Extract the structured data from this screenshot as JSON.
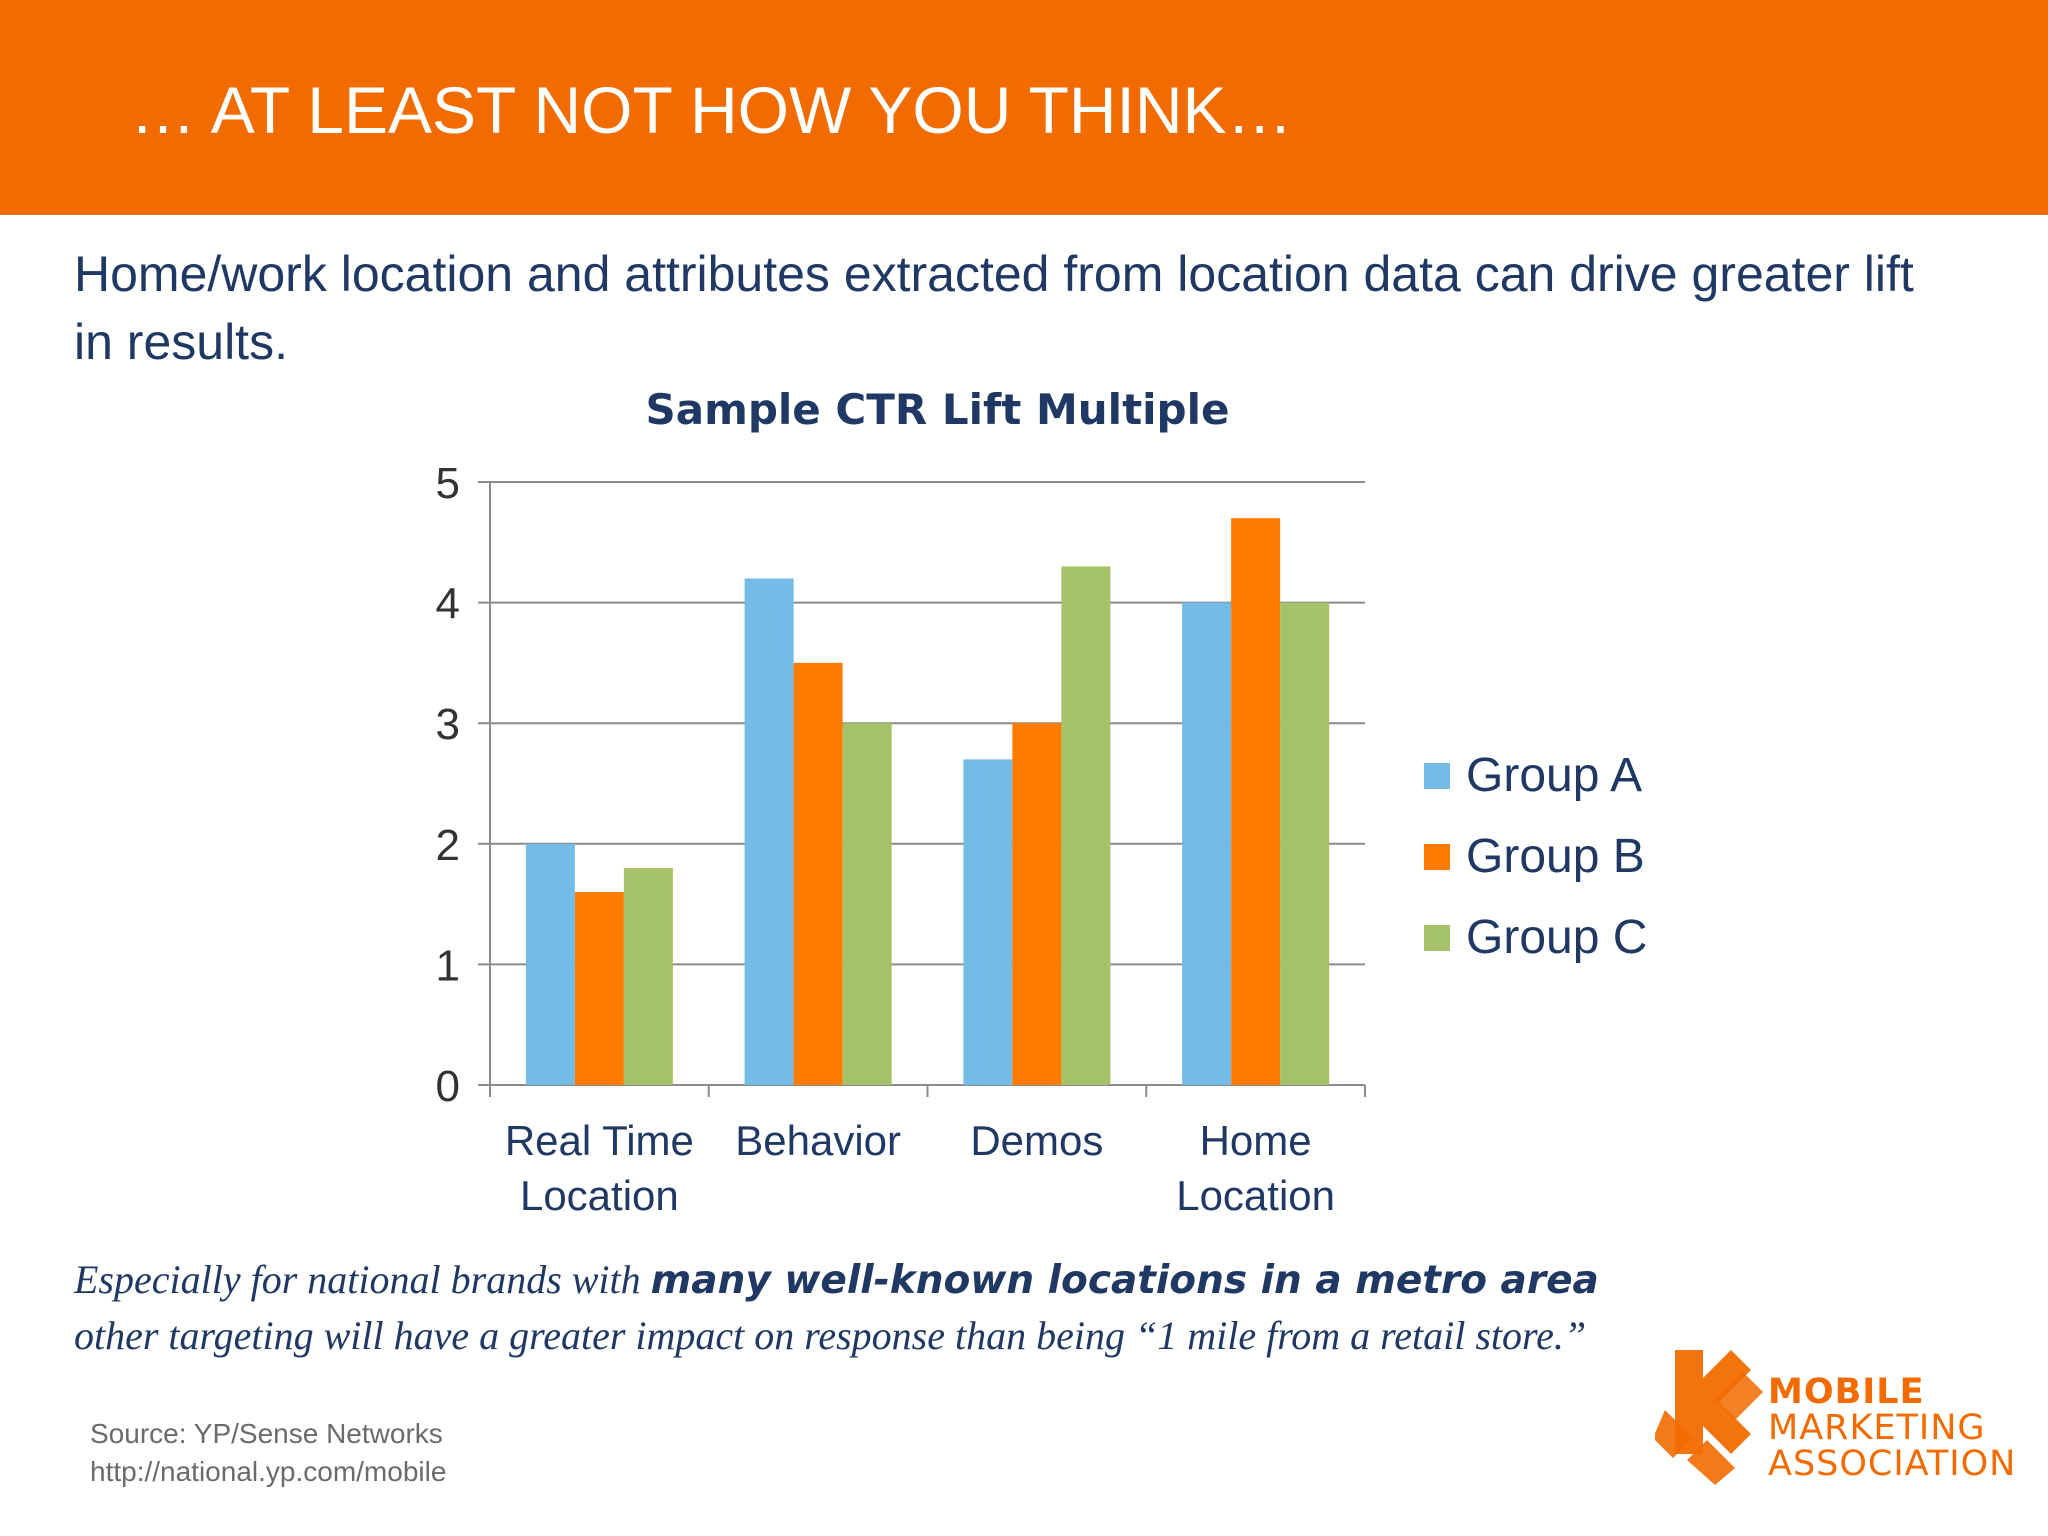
{
  "header": {
    "title": "… AT LEAST NOT HOW YOU THINK…"
  },
  "subtitle": "Home/work location and attributes extracted from location data can drive greater lift in results.",
  "colors": {
    "brand_orange": "#F26B00",
    "navy": "#1F3864",
    "group_a": "#74BBE6",
    "group_b": "#FF7B00",
    "group_c": "#A5C26A"
  },
  "chart_data": {
    "type": "bar",
    "title": "Sample CTR Lift Multiple",
    "categories": [
      "Real Time\nLocation",
      "Behavior",
      "Demos",
      "Home\nLocation"
    ],
    "series": [
      {
        "name": "Group A",
        "values": [
          2.0,
          4.2,
          2.7,
          4.0
        ]
      },
      {
        "name": "Group B",
        "values": [
          1.6,
          3.5,
          3.0,
          4.7
        ]
      },
      {
        "name": "Group C",
        "values": [
          1.8,
          3.0,
          4.3,
          4.0
        ]
      }
    ],
    "xlabel": "",
    "ylabel": "",
    "ylim": [
      0,
      5
    ],
    "yticks": [
      "0",
      "1",
      "2",
      "3",
      "4",
      "5"
    ],
    "grid": true,
    "legend": "right"
  },
  "note": {
    "part1": "Especially for national brands with ",
    "bold": "many well-known locations in a metro area",
    "part2": "other targeting will have a greater impact on response than being “1 mile from a retail store.”"
  },
  "source": {
    "line1": "Source: YP/Sense Networks",
    "line2": "http://national.yp.com/mobile"
  },
  "logo": {
    "line1": "MOBILE",
    "line2": "MARKETING",
    "line3": "ASSOCIATION",
    "icon": "mma-logo-icon"
  }
}
